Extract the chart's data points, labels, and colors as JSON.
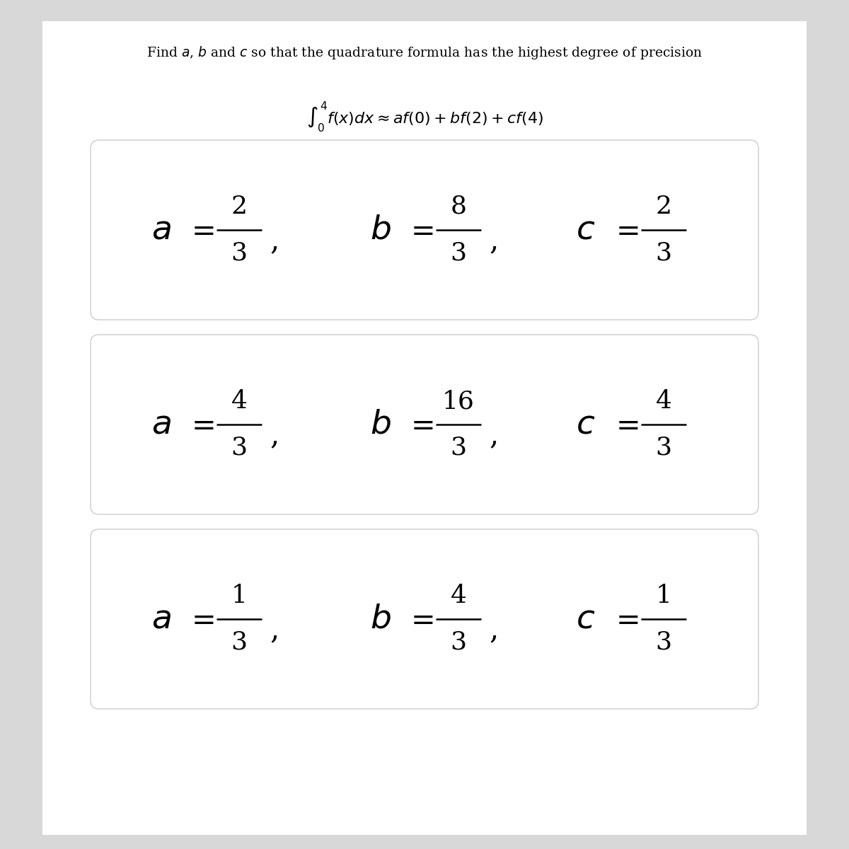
{
  "title": "Find $a$, $b$ and $c$ so that the quadrature formula has the highest degree of precision",
  "integral_formula": "$\\int_0^4 f(x)dx \\approx af(0) + bf(2) + cf(4)$",
  "options": [
    {
      "a_num": "2",
      "a_den": "3",
      "b_num": "8",
      "b_den": "3",
      "c_num": "2",
      "c_den": "3"
    },
    {
      "a_num": "4",
      "a_den": "3",
      "b_num": "16",
      "b_den": "3",
      "c_num": "4",
      "c_den": "3"
    },
    {
      "a_num": "1",
      "a_den": "3",
      "b_num": "4",
      "b_den": "3",
      "c_num": "1",
      "c_den": "3"
    }
  ],
  "text_color": "#000000",
  "fig_bg": "#d8d8d8",
  "panel_bg": "#ffffff",
  "box_edge": "#cccccc",
  "box_bg": "#ffffff"
}
